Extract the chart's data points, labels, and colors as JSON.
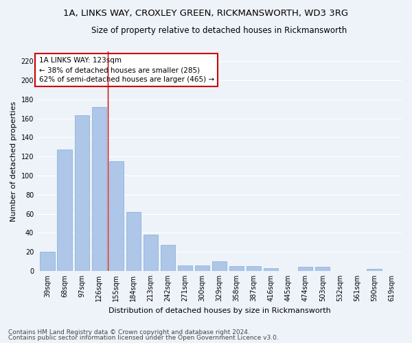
{
  "title_line1": "1A, LINKS WAY, CROXLEY GREEN, RICKMANSWORTH, WD3 3RG",
  "title_line2": "Size of property relative to detached houses in Rickmansworth",
  "xlabel": "Distribution of detached houses by size in Rickmansworth",
  "ylabel": "Number of detached properties",
  "categories": [
    "39sqm",
    "68sqm",
    "97sqm",
    "126sqm",
    "155sqm",
    "184sqm",
    "213sqm",
    "242sqm",
    "271sqm",
    "300sqm",
    "329sqm",
    "358sqm",
    "387sqm",
    "416sqm",
    "445sqm",
    "474sqm",
    "503sqm",
    "532sqm",
    "561sqm",
    "590sqm",
    "619sqm"
  ],
  "values": [
    20,
    127,
    163,
    172,
    115,
    62,
    38,
    27,
    6,
    6,
    10,
    5,
    5,
    3,
    0,
    4,
    4,
    0,
    0,
    2,
    0
  ],
  "bar_color": "#aec6e8",
  "bar_edge_color": "#7aafd4",
  "vline_x": 3.5,
  "vline_color": "#cc0000",
  "annotation_text": "1A LINKS WAY: 123sqm\n← 38% of detached houses are smaller (285)\n62% of semi-detached houses are larger (465) →",
  "annotation_box_color": "#ffffff",
  "annotation_box_edge": "#cc0000",
  "ylim": [
    0,
    230
  ],
  "yticks": [
    0,
    20,
    40,
    60,
    80,
    100,
    120,
    140,
    160,
    180,
    200,
    220
  ],
  "footer_line1": "Contains HM Land Registry data © Crown copyright and database right 2024.",
  "footer_line2": "Contains public sector information licensed under the Open Government Licence v3.0.",
  "bg_color": "#eef2f9",
  "grid_color": "#ffffff",
  "title_fontsize": 9.5,
  "subtitle_fontsize": 8.5,
  "axis_label_fontsize": 8,
  "tick_fontsize": 7,
  "footer_fontsize": 6.5,
  "annotation_fontsize": 7.5
}
